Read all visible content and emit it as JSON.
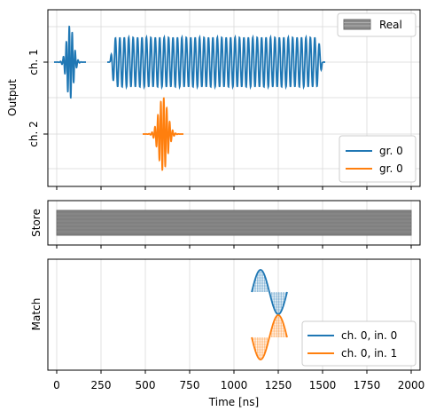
{
  "chart_data": [
    {
      "type": "line",
      "panel": "output",
      "ylabel": "Output",
      "channels": [
        "ch. 1",
        "ch. 2"
      ],
      "xlim": [
        -50,
        2050
      ],
      "x_ticks": [
        0,
        250,
        500,
        750,
        1000,
        1250,
        1500,
        1750,
        2000
      ],
      "grid": true,
      "legend_top": {
        "label": "Real",
        "color": "#8a8a8a",
        "position": "top-right"
      },
      "legend_bottom": {
        "position": "bottom-right",
        "entries": [
          {
            "label": "gr. 0",
            "color": "#1f77b4"
          },
          {
            "label": "gr. 0",
            "color": "#ff7f0e"
          }
        ]
      },
      "series": [
        {
          "channel": "ch. 1",
          "kind": "gaussian",
          "color": "#1f77b4",
          "x_start": 0,
          "x_end": 150,
          "freq_mhz": 60
        },
        {
          "channel": "ch. 1",
          "kind": "flat-top",
          "color": "#1f77b4",
          "x_start": 300,
          "x_end": 1500,
          "freq_mhz": 40
        },
        {
          "channel": "ch. 2",
          "kind": "gaussian",
          "color": "#ff7f0e",
          "x_start": 500,
          "x_end": 700,
          "freq_mhz": 60
        }
      ]
    },
    {
      "type": "area",
      "panel": "store",
      "ylabel": "Store",
      "xlim": [
        -50,
        2050
      ],
      "x_ticks": [
        0,
        250,
        500,
        750,
        1000,
        1250,
        1500,
        1750,
        2000
      ],
      "grid": true,
      "span": [
        0,
        2000
      ],
      "color": "#808080"
    },
    {
      "type": "line",
      "panel": "match",
      "ylabel": "Match",
      "xlabel": "Time [ns]",
      "xlim": [
        -50,
        2050
      ],
      "x_ticks": [
        0,
        250,
        500,
        750,
        1000,
        1250,
        1500,
        1750,
        2000
      ],
      "x_tick_labels": [
        "0",
        "250",
        "500",
        "750",
        "1000",
        "1250",
        "1500",
        "1750",
        "2000"
      ],
      "grid": true,
      "legend": {
        "position": "bottom-right",
        "entries": [
          {
            "label": "ch. 0, in. 0",
            "color": "#1f77b4"
          },
          {
            "label": "ch. 0, in. 1",
            "color": "#ff7f0e"
          }
        ]
      },
      "series": [
        {
          "name": "ch. 0, in. 0",
          "color": "#1f77b4",
          "x_start": 1100,
          "x_end": 1300,
          "kind": "sine",
          "phase": "positive-first"
        },
        {
          "name": "ch. 0, in. 1",
          "color": "#ff7f0e",
          "x_start": 1100,
          "x_end": 1300,
          "kind": "sine",
          "phase": "negative-first"
        }
      ]
    }
  ]
}
